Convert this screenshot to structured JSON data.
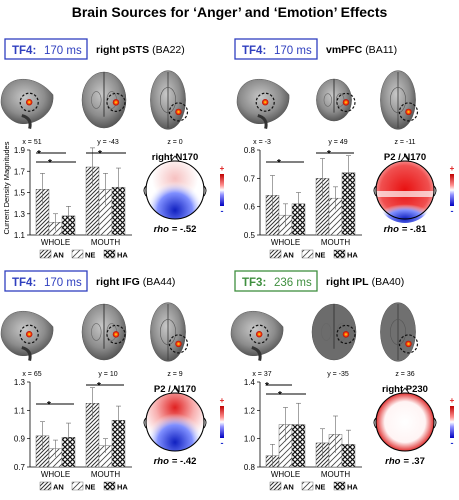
{
  "figure": {
    "title": "Brain Sources for ‘Anger’ and ‘Emotion’ Effects",
    "shared_ylabel": "Current Density Magnitudes",
    "legend_labels": [
      "AN",
      "NE",
      "HA"
    ],
    "rho_prefix": "rho",
    "colorbar_plus": "+",
    "colorbar_minus": "-",
    "colors": {
      "blue_box": "#2f3fbf",
      "green_box": "#3f8f3f",
      "red": "#e02020",
      "blue": "#2030d0"
    }
  },
  "panels": [
    {
      "tf_label": "TF4:",
      "tf_time": "170 ms",
      "box_color": "blue",
      "region": "right pSTS",
      "ba": "(BA22)",
      "coords": [
        "x = 51",
        "y = -43",
        "z = 0"
      ],
      "component": "right N170",
      "rho": "= -.52"
    },
    {
      "tf_label": "TF4:",
      "tf_time": "170 ms",
      "box_color": "blue",
      "region": "vmPFC",
      "ba": "(BA11)",
      "coords": [
        "x = -3",
        "y = 49",
        "z = -11"
      ],
      "component": "P2 / N170",
      "rho": "= -.81"
    },
    {
      "tf_label": "TF4:",
      "tf_time": "170 ms",
      "box_color": "blue",
      "region": "right IFG",
      "ba": "(BA44)",
      "coords": [
        "x = 65",
        "y = 10",
        "z = 9"
      ],
      "component": "P2 / N170",
      "rho": "= -.42"
    },
    {
      "tf_label": "TF3:",
      "tf_time": "236 ms",
      "box_color": "green",
      "region": "right IPL",
      "ba": "(BA40)",
      "coords": [
        "x = 37",
        "y = -35",
        "z = 36"
      ],
      "component": "right P230",
      "rho": "= .37"
    }
  ],
  "chart_data": [
    {
      "type": "bar",
      "categories": [
        "WHOLE",
        "MOUTH"
      ],
      "series": [
        {
          "name": "AN",
          "values": [
            1.53,
            1.74
          ]
        },
        {
          "name": "NE",
          "values": [
            1.22,
            1.53
          ]
        },
        {
          "name": "HA",
          "values": [
            1.28,
            1.55
          ]
        }
      ],
      "errors": [
        [
          0.15,
          0.18
        ],
        [
          0.08,
          0.15
        ],
        [
          0.09,
          0.18
        ]
      ],
      "ylabel": "Current Density Magnitudes",
      "ylim": [
        1.1,
        1.9
      ],
      "yticks": [
        "1.1",
        "1.3",
        "1.5",
        "1.7",
        "1.9"
      ],
      "significance": "*"
    },
    {
      "type": "bar",
      "categories": [
        "WHOLE",
        "MOUTH"
      ],
      "series": [
        {
          "name": "AN",
          "values": [
            0.64,
            0.7
          ]
        },
        {
          "name": "NE",
          "values": [
            0.57,
            0.63
          ]
        },
        {
          "name": "HA",
          "values": [
            0.61,
            0.72
          ]
        }
      ],
      "errors": [
        [
          0.07,
          0.07
        ],
        [
          0.04,
          0.04
        ],
        [
          0.04,
          0.06
        ]
      ],
      "ylim": [
        0.5,
        0.8
      ],
      "yticks": [
        "0.5",
        "0.6",
        "0.7",
        "0.8"
      ],
      "significance": "*"
    },
    {
      "type": "bar",
      "categories": [
        "WHOLE",
        "MOUTH"
      ],
      "series": [
        {
          "name": "AN",
          "values": [
            0.92,
            1.15
          ]
        },
        {
          "name": "NE",
          "values": [
            0.83,
            0.85
          ]
        },
        {
          "name": "HA",
          "values": [
            0.91,
            1.03
          ]
        }
      ],
      "errors": [
        [
          0.1,
          0.11
        ],
        [
          0.06,
          0.05
        ],
        [
          0.1,
          0.1
        ]
      ],
      "ylim": [
        0.7,
        1.3
      ],
      "yticks": [
        "0.7",
        "0.9",
        "1.1",
        "1.3"
      ],
      "significance": "*"
    },
    {
      "type": "bar",
      "categories": [
        "WHOLE",
        "MOUTH"
      ],
      "series": [
        {
          "name": "AN",
          "values": [
            0.88,
            0.97
          ]
        },
        {
          "name": "NE",
          "values": [
            1.1,
            1.03
          ]
        },
        {
          "name": "HA",
          "values": [
            1.1,
            0.96
          ]
        }
      ],
      "errors": [
        [
          0.08,
          0.1
        ],
        [
          0.12,
          0.13
        ],
        [
          0.15,
          0.1
        ]
      ],
      "ylim": [
        0.8,
        1.4
      ],
      "yticks": [
        "0.8",
        "1.0",
        "1.2",
        "1.4"
      ],
      "significance": "*"
    }
  ]
}
